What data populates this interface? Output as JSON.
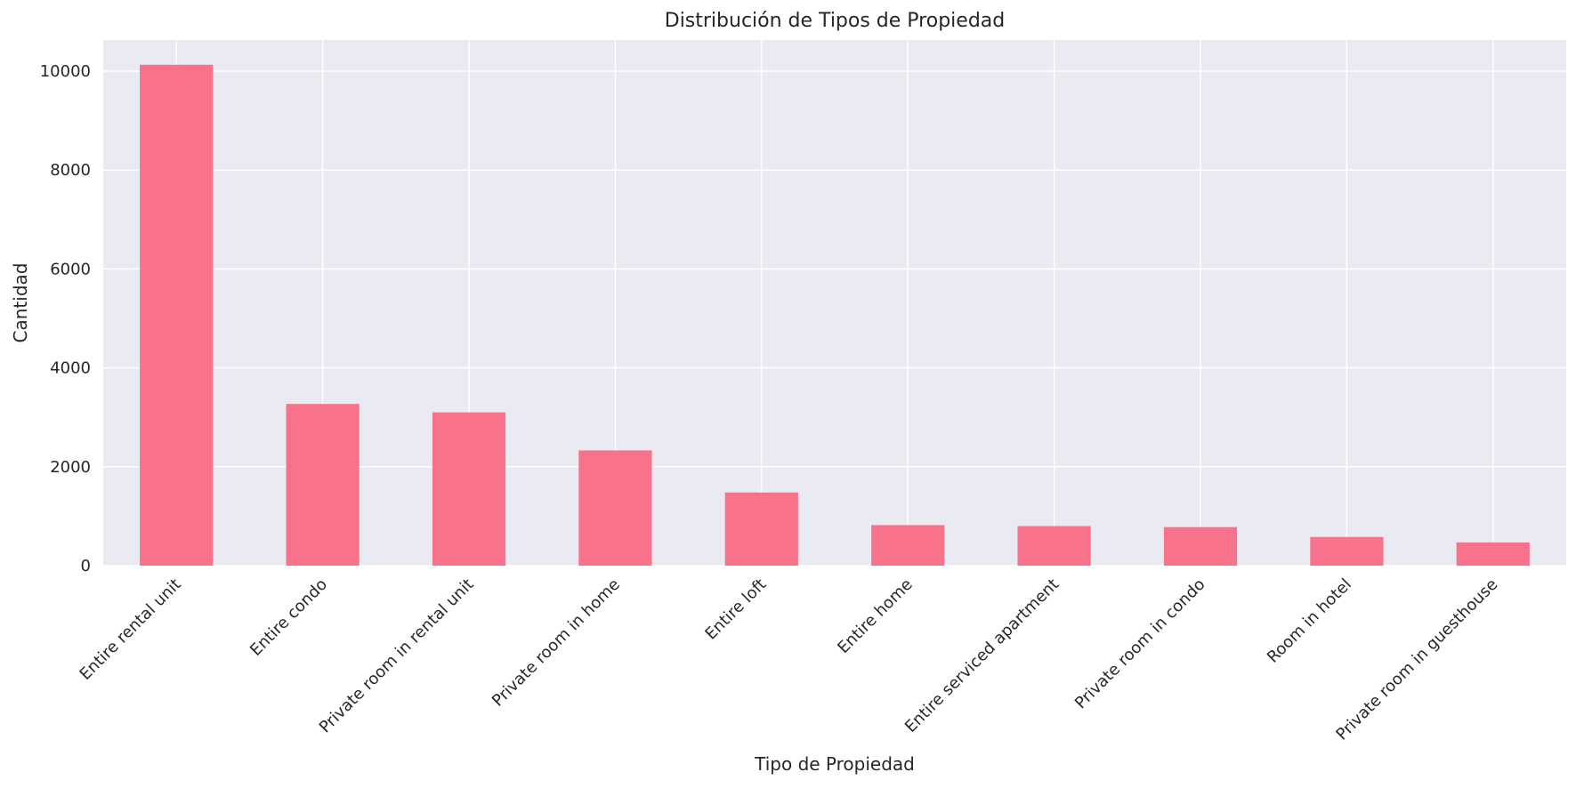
{
  "chart_data": {
    "type": "bar",
    "title": "Distribución de Tipos de Propiedad",
    "xlabel": "Tipo de Propiedad",
    "ylabel": "Cantidad",
    "categories": [
      "Entire rental unit",
      "Entire condo",
      "Private room in rental unit",
      "Private room in home",
      "Entire loft",
      "Entire home",
      "Entire serviced apartment",
      "Private room in condo",
      "Room in hotel",
      "Private room in guesthouse"
    ],
    "values": [
      10130,
      3270,
      3100,
      2330,
      1480,
      820,
      800,
      780,
      580,
      470
    ],
    "ylim": [
      0,
      10630
    ],
    "yticks": [
      0,
      2000,
      4000,
      6000,
      8000,
      10000
    ],
    "grid": true,
    "legend": "none",
    "colors": {
      "bar": "#f7728a",
      "plot_background": "#eaeaf2",
      "grid": "#ffffff",
      "text": "#262626"
    }
  }
}
